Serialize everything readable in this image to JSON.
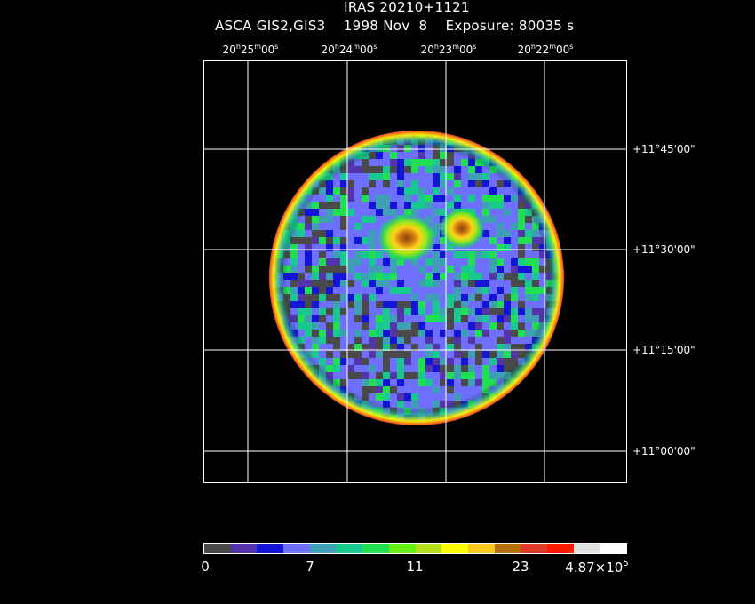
{
  "title": {
    "object": "IRAS 20210+1121",
    "instrument": "ASCA GIS2,GIS3",
    "date": "1998 Nov  8",
    "exposure": "Exposure: 80035 s"
  },
  "ra_axis": {
    "labels": [
      {
        "h": "20",
        "m": "25",
        "s": "00"
      },
      {
        "h": "20",
        "m": "24",
        "s": "00"
      },
      {
        "h": "20",
        "m": "23",
        "s": "00"
      },
      {
        "h": "20",
        "m": "22",
        "s": "00"
      }
    ]
  },
  "dec_axis": {
    "labels": [
      "+11°45'00\"",
      "+11°30'00\"",
      "+11°15'00\"",
      "+11°00'00\""
    ]
  },
  "image": {
    "description_icon": "xray-count-map",
    "field_shape": "circular",
    "bright_sources": 2
  },
  "colorbar": {
    "colors": [
      "#4a4a4a",
      "#5533aa",
      "#1414d8",
      "#6e6eff",
      "#3f9fb4",
      "#17c98e",
      "#1ee050",
      "#66ee11",
      "#b4e01a",
      "#ffff00",
      "#ffc81a",
      "#b46e0a",
      "#e03a28",
      "#ff1a00",
      "#e0e0e0",
      "#ffffff"
    ],
    "labels": {
      "l0": "0",
      "l1": "7",
      "l2": "11",
      "l3": "23",
      "l4_mantissa": "4.87×10",
      "l4_exp": "5"
    }
  }
}
